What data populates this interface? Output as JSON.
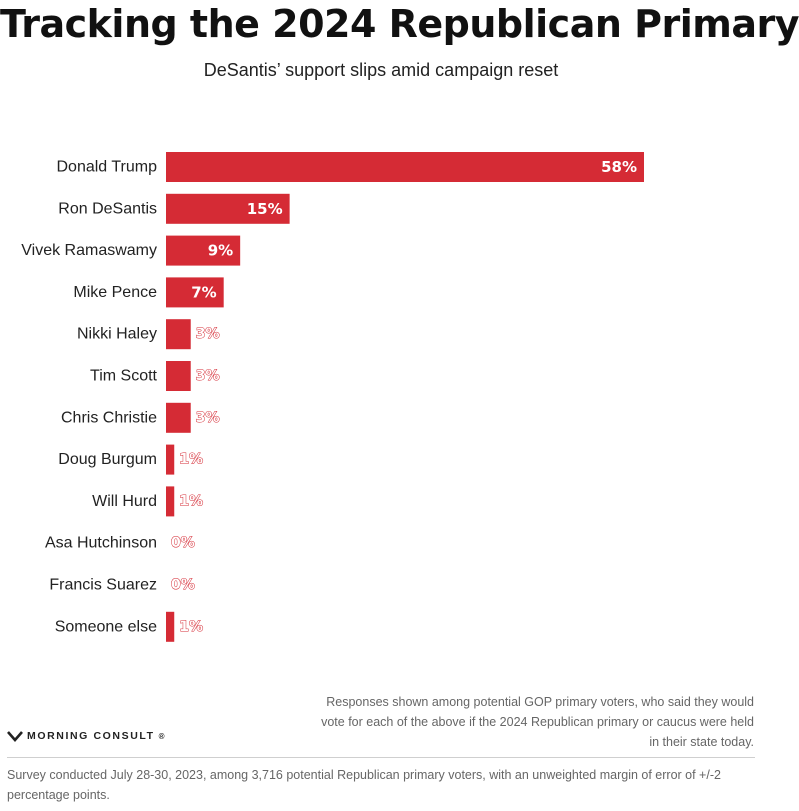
{
  "header": {
    "title": "Tracking the 2024 Republican Primary",
    "subtitle": "DeSantis’ support slips amid campaign reset"
  },
  "chart_data": {
    "type": "bar",
    "orientation": "horizontal",
    "categories": [
      "Donald Trump",
      "Ron DeSantis",
      "Vivek Ramaswamy",
      "Mike Pence",
      "Nikki Haley",
      "Tim Scott",
      "Chris Christie",
      "Doug Burgum",
      "Will Hurd",
      "Asa Hutchinson",
      "Francis Suarez",
      "Someone else"
    ],
    "values": [
      58,
      15,
      9,
      7,
      3,
      3,
      3,
      1,
      1,
      0,
      0,
      1
    ],
    "value_labels": [
      "58%",
      "15%",
      "9%",
      "7%",
      "3%",
      "3%",
      "3%",
      "1%",
      "1%",
      "0%",
      "0%",
      "1%"
    ],
    "unit": "%",
    "xlim": [
      0,
      58
    ],
    "bar_color": "#d52b35",
    "title": "Tracking the 2024 Republican Primary",
    "subtitle": "DeSantis’ support slips amid campaign reset",
    "xlabel": "",
    "ylabel": "",
    "grid": false,
    "legend": "none"
  },
  "notes": {
    "responses": "Responses shown among potential GOP primary voters, who said they would vote for each of the above if the 2024 Republican primary or caucus were held in their state today.",
    "survey": "Survey conducted July 28-30, 2023, among 3,716 potential Republican primary voters, with an unweighted margin of error of +/-2 percentage points."
  },
  "brand": {
    "name": "MORNING CONSULT",
    "mark": "®",
    "logo_icon": "morning-consult-m-icon"
  }
}
